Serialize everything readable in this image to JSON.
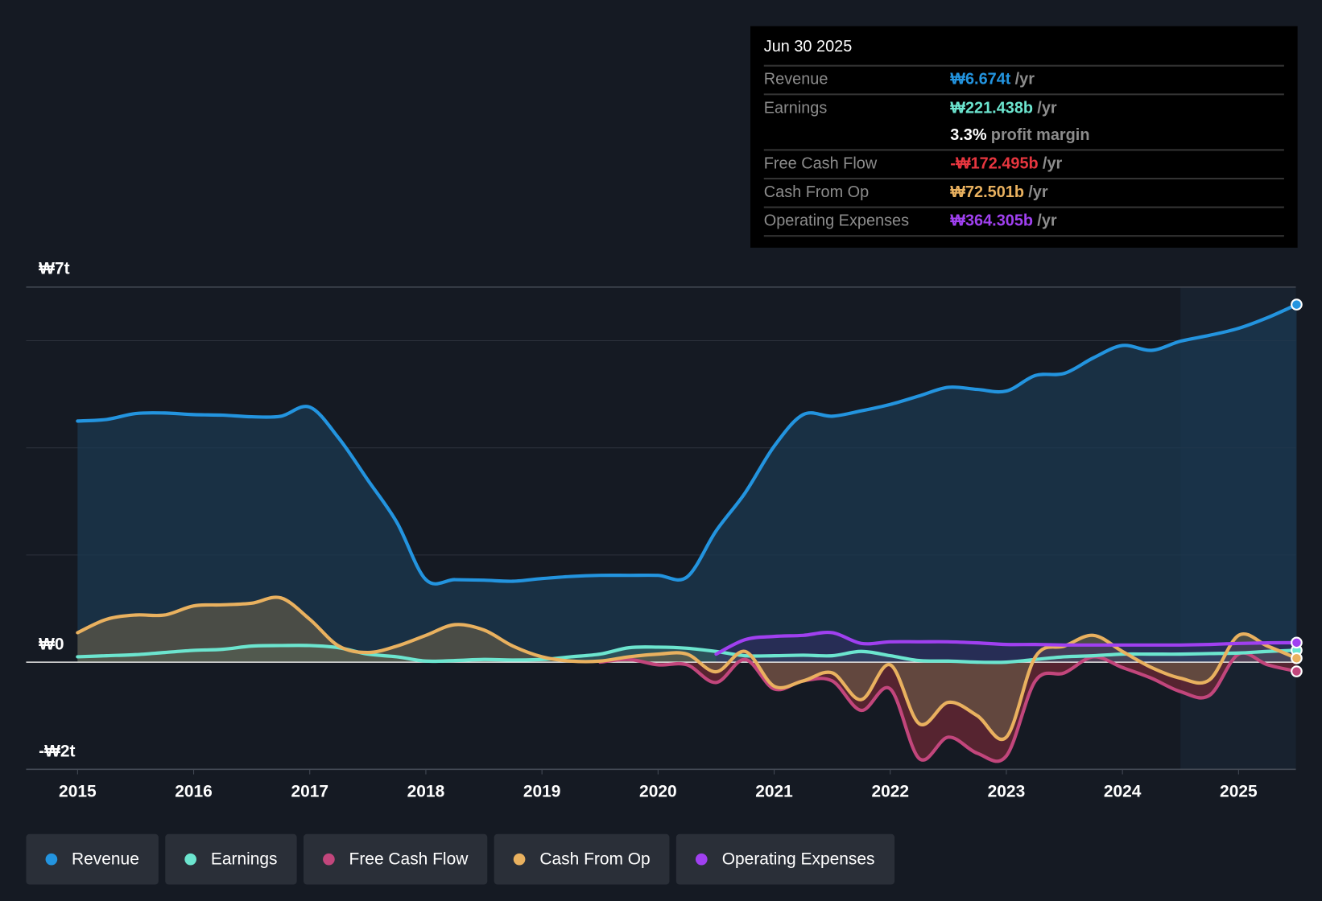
{
  "tooltip": {
    "date": "Jun 30 2025",
    "rows": [
      {
        "label": "Revenue",
        "value": "₩6.674t",
        "unit": "/yr",
        "color": "#2394df"
      },
      {
        "label": "Earnings",
        "value": "₩221.438b",
        "unit": "/yr",
        "color": "#6ce5cf"
      },
      {
        "label": "",
        "value": "3.3%",
        "unit": "profit margin",
        "color": "#ffffff"
      },
      {
        "label": "Free Cash Flow",
        "value": "-₩172.495b",
        "unit": "/yr",
        "color": "#e8363f"
      },
      {
        "label": "Cash From Op",
        "value": "₩72.501b",
        "unit": "/yr",
        "color": "#e9b15f"
      },
      {
        "label": "Operating Expenses",
        "value": "₩364.305b",
        "unit": "/yr",
        "color": "#a040f0"
      }
    ]
  },
  "legend": [
    {
      "label": "Revenue",
      "color": "#2394df"
    },
    {
      "label": "Earnings",
      "color": "#6ce5cf"
    },
    {
      "label": "Free Cash Flow",
      "color": "#c2467c"
    },
    {
      "label": "Cash From Op",
      "color": "#e9b15f"
    },
    {
      "label": "Operating Expenses",
      "color": "#a040f0"
    }
  ],
  "chart_data": {
    "type": "line",
    "ylabels": [
      "₩7t",
      "₩0",
      "-₩2t"
    ],
    "ylim": [
      -2,
      7
    ],
    "xlim": [
      2014.55,
      2025.5
    ],
    "xticks": [
      "2015",
      "2016",
      "2017",
      "2018",
      "2019",
      "2020",
      "2021",
      "2022",
      "2023",
      "2024",
      "2025"
    ],
    "forecast_start": 2024.5,
    "unit": "trillion KRW",
    "series": [
      {
        "name": "Revenue",
        "color": "#2394df",
        "fill": true,
        "x0": 2015,
        "values": [
          4.5,
          4.53,
          4.64,
          4.65,
          4.62,
          4.61,
          4.58,
          4.59,
          4.76,
          4.18,
          3.4,
          2.61,
          1.54,
          1.54,
          1.53,
          1.51,
          1.56,
          1.6,
          1.62,
          1.62,
          1.62,
          1.59,
          2.45,
          3.16,
          4.03,
          4.62,
          4.59,
          4.69,
          4.81,
          4.97,
          5.13,
          5.09,
          5.06,
          5.35,
          5.39,
          5.68,
          5.91,
          5.82,
          5.99,
          6.1,
          6.23,
          6.43,
          6.674
        ]
      },
      {
        "name": "Earnings",
        "color": "#6ce5cf",
        "fill": true,
        "x0": 2015,
        "values": [
          0.1,
          0.12,
          0.14,
          0.18,
          0.22,
          0.24,
          0.3,
          0.31,
          0.31,
          0.27,
          0.15,
          0.1,
          0.02,
          0.03,
          0.05,
          0.04,
          0.05,
          0.1,
          0.15,
          0.27,
          0.28,
          0.26,
          0.2,
          0.12,
          0.12,
          0.13,
          0.12,
          0.2,
          0.12,
          0.03,
          0.02,
          0.0,
          0.0,
          0.05,
          0.1,
          0.12,
          0.15,
          0.15,
          0.15,
          0.16,
          0.17,
          0.2,
          0.221
        ]
      },
      {
        "name": "Free Cash Flow",
        "color": "#c2467c",
        "fill": true,
        "x0": 2019.5,
        "values": [
          0.0,
          0.05,
          -0.05,
          -0.05,
          -0.38,
          0.05,
          -0.5,
          -0.35,
          -0.35,
          -0.9,
          -0.5,
          -1.8,
          -1.4,
          -1.7,
          -1.75,
          -0.35,
          -0.2,
          0.1,
          -0.1,
          -0.3,
          -0.55,
          -0.62,
          0.15,
          -0.05,
          -0.172
        ]
      },
      {
        "name": "Cash From Op",
        "color": "#e9b15f",
        "fill": true,
        "x0": 2015,
        "values": [
          0.55,
          0.8,
          0.88,
          0.88,
          1.05,
          1.07,
          1.1,
          1.2,
          0.8,
          0.3,
          0.18,
          0.3,
          0.5,
          0.7,
          0.6,
          0.3,
          0.1,
          0.02,
          0.02,
          0.1,
          0.15,
          0.15,
          -0.18,
          0.2,
          -0.45,
          -0.35,
          -0.2,
          -0.7,
          -0.05,
          -1.15,
          -0.75,
          -1.0,
          -1.4,
          0.1,
          0.3,
          0.5,
          0.2,
          -0.1,
          -0.3,
          -0.33,
          0.5,
          0.3,
          0.073
        ]
      },
      {
        "name": "Operating Expenses",
        "color": "#a040f0",
        "fill": true,
        "x0": 2020.5,
        "values": [
          0.15,
          0.42,
          0.48,
          0.5,
          0.55,
          0.35,
          0.38,
          0.38,
          0.38,
          0.36,
          0.33,
          0.33,
          0.32,
          0.32,
          0.32,
          0.32,
          0.32,
          0.33,
          0.35,
          0.36,
          0.364
        ]
      }
    ]
  }
}
